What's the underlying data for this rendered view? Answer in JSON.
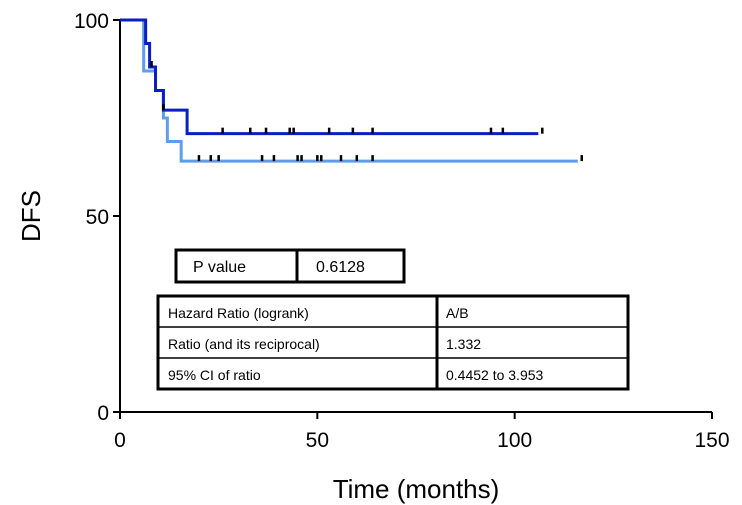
{
  "chart_data": {
    "type": "line",
    "xlabel": "Time (months)",
    "ylabel": "DFS",
    "xlim": [
      0,
      150
    ],
    "ylim": [
      0,
      100
    ],
    "xticks": [
      "0",
      "50",
      "100",
      "150"
    ],
    "yticks": [
      "0",
      "50",
      "100"
    ],
    "grid": false,
    "series": [
      {
        "color": "#0a1fbf",
        "steps": [
          [
            0,
            100
          ],
          [
            6.5,
            94
          ],
          [
            7.5,
            88
          ],
          [
            9,
            82
          ],
          [
            11,
            77
          ],
          [
            17,
            71
          ],
          [
            106,
            71
          ]
        ],
        "censored": [
          8,
          11,
          26,
          33,
          37,
          43,
          44,
          53,
          59,
          64,
          94,
          97,
          107
        ]
      },
      {
        "color": "#5b9ef0",
        "steps": [
          [
            0,
            100
          ],
          [
            6,
            87
          ],
          [
            9,
            82
          ],
          [
            11,
            75
          ],
          [
            12,
            69
          ],
          [
            15.5,
            64
          ],
          [
            116,
            64
          ]
        ],
        "censored": [
          20,
          23,
          25,
          36,
          39,
          45,
          46,
          50,
          51,
          56,
          60,
          64,
          117
        ]
      }
    ],
    "annotations": {
      "p_value": {
        "label": "P value",
        "value": "0.6128"
      },
      "hazard_table": {
        "rows": [
          [
            "Hazard Ratio (logrank)",
            "A/B"
          ],
          [
            "Ratio (and its reciprocal)",
            "1.332"
          ],
          [
            "95% CI of ratio",
            "0.4452 to 3.953"
          ]
        ]
      }
    }
  }
}
